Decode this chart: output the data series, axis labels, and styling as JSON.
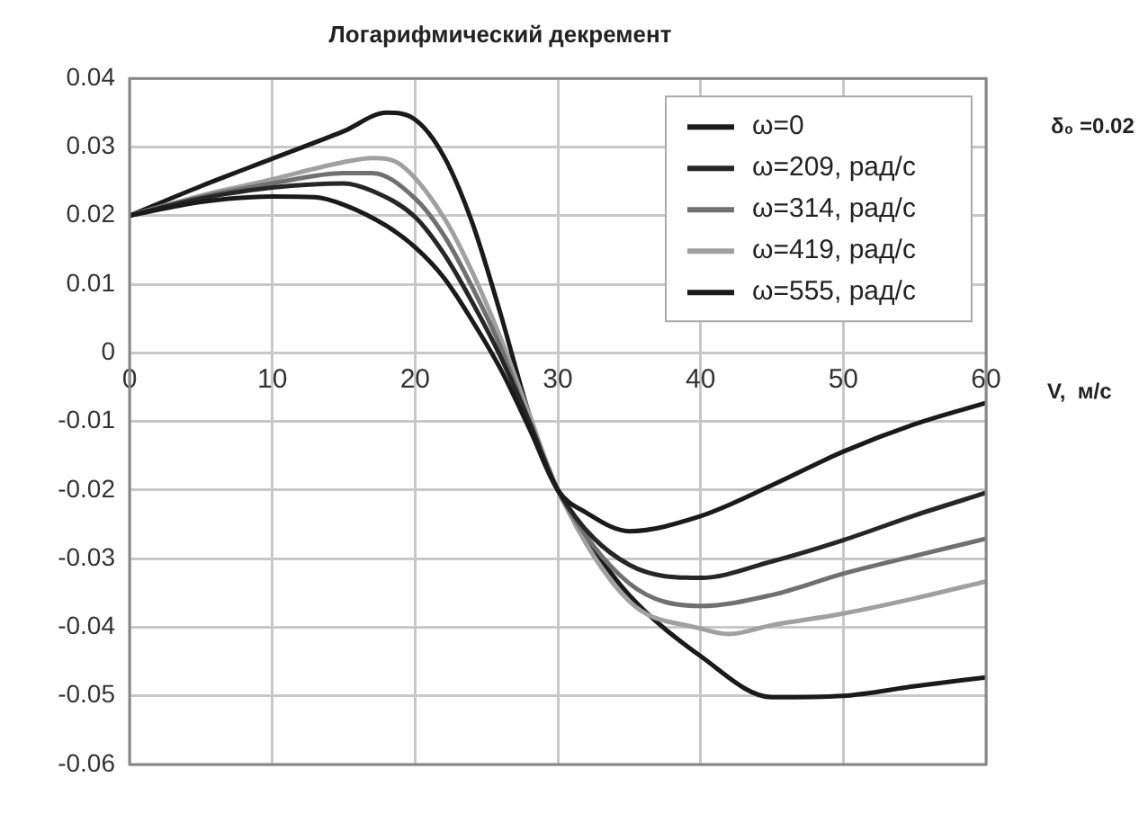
{
  "chart_data": {
    "type": "line",
    "title": "Логарифмический декремент",
    "xlabel": "V,  м/с",
    "annotations": [
      "δ₀ =0.02"
    ],
    "xlim": [
      0,
      60
    ],
    "xticks": [
      0,
      10,
      20,
      30,
      40,
      50,
      60
    ],
    "ylim": [
      -0.06,
      0.04
    ],
    "yticks": [
      -0.06,
      -0.05,
      -0.04,
      -0.03,
      -0.02,
      -0.01,
      0,
      0.01,
      0.02,
      0.03,
      0.04
    ],
    "grid": true,
    "legend": "top right",
    "marker": "none",
    "line_style": "solid",
    "series": [
      {
        "name": "ω=0",
        "color": "#1a1a1a",
        "x": [
          0,
          5,
          10,
          13,
          15,
          18,
          20,
          22,
          24,
          26,
          28,
          30,
          32,
          35,
          40,
          45,
          50,
          55,
          60
        ],
        "values": [
          0.02,
          0.022,
          0.0228,
          0.0227,
          0.0216,
          0.0185,
          0.0154,
          0.011,
          0.0047,
          -0.0024,
          -0.011,
          -0.02,
          -0.0233,
          -0.026,
          -0.0238,
          -0.0193,
          -0.0144,
          -0.0104,
          -0.0073
        ]
      },
      {
        "name": "ω=209, рад/с",
        "color": "#262626",
        "x": [
          0,
          5,
          10,
          15,
          17,
          20,
          22,
          24,
          26,
          28,
          30,
          35,
          40,
          45,
          50,
          55,
          60
        ],
        "values": [
          0.02,
          0.0225,
          0.0241,
          0.0247,
          0.0236,
          0.0198,
          0.0145,
          0.0074,
          -0.0006,
          -0.01,
          -0.02,
          -0.0309,
          -0.0328,
          -0.0304,
          -0.0273,
          -0.0237,
          -0.0204
        ]
      },
      {
        "name": "ω=314, рад/с",
        "color": "#707070",
        "x": [
          0,
          5,
          10,
          15,
          17,
          20,
          22,
          24,
          26,
          28,
          30,
          35,
          40,
          45,
          50,
          55,
          60
        ],
        "values": [
          0.02,
          0.0227,
          0.0247,
          0.0262,
          0.0262,
          0.0225,
          0.0172,
          0.0096,
          0.0008,
          -0.01,
          -0.02,
          -0.0336,
          -0.0369,
          -0.0353,
          -0.0322,
          -0.0296,
          -0.0271
        ]
      },
      {
        "name": "ω=419, рад/с",
        "color": "#a0a0a0",
        "x": [
          0,
          5,
          10,
          15,
          17,
          19,
          22,
          24,
          26,
          28,
          30,
          35,
          40,
          42,
          45,
          50,
          55,
          60
        ],
        "values": [
          0.02,
          0.0229,
          0.0253,
          0.0278,
          0.0284,
          0.0274,
          0.0198,
          0.0118,
          0.0021,
          -0.009,
          -0.02,
          -0.0362,
          -0.0402,
          -0.041,
          -0.0397,
          -0.038,
          -0.0358,
          -0.0333
        ]
      },
      {
        "name": "ω=555, рад/с",
        "color": "#1a1a1a",
        "x": [
          0,
          5,
          10,
          15,
          18,
          20,
          22,
          24,
          26,
          28,
          30,
          32,
          35,
          40,
          45,
          50,
          55,
          60
        ],
        "values": [
          0.02,
          0.0243,
          0.0283,
          0.0323,
          0.035,
          0.034,
          0.0287,
          0.019,
          0.0056,
          -0.009,
          -0.02,
          -0.027,
          -0.0353,
          -0.0442,
          -0.0502,
          -0.05,
          -0.0486,
          -0.0473
        ]
      }
    ]
  }
}
